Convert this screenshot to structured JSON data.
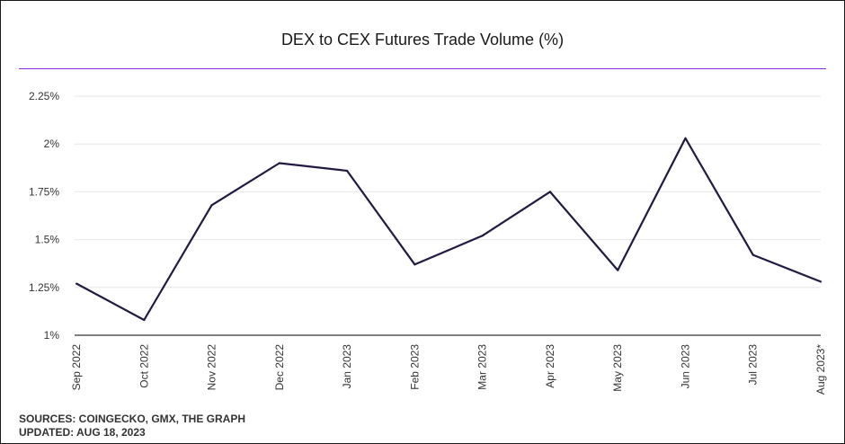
{
  "chart_data": {
    "type": "line",
    "title": "DEX to CEX Futures Trade Volume (%)",
    "categories": [
      "Sep 2022",
      "Oct 2022",
      "Nov 2022",
      "Dec 2022",
      "Jan 2023",
      "Feb 2023",
      "Mar 2023",
      "Apr 2023",
      "May 2023",
      "Jun 2023",
      "Jul 2023",
      "Aug 2023*"
    ],
    "series": [
      {
        "values": [
          1.27,
          1.08,
          1.68,
          1.9,
          1.86,
          1.37,
          1.52,
          1.75,
          1.34,
          2.03,
          1.42,
          1.28
        ]
      }
    ],
    "y_ticks": [
      1,
      1.25,
      1.5,
      1.75,
      2,
      2.25
    ],
    "y_tick_labels": [
      "1%",
      "1.25%",
      "1.5%",
      "1.75%",
      "2%",
      "2.25%"
    ],
    "ylim": [
      1,
      2.25
    ],
    "grid": true,
    "legend": "none",
    "xlabel": "",
    "ylabel": "",
    "line_color": "#231942",
    "accent_color": "#8a2be2"
  },
  "footer": {
    "sources": "SOURCES: COINGECKO, GMX, THE GRAPH",
    "updated": "UPDATED: AUG 18, 2023"
  }
}
